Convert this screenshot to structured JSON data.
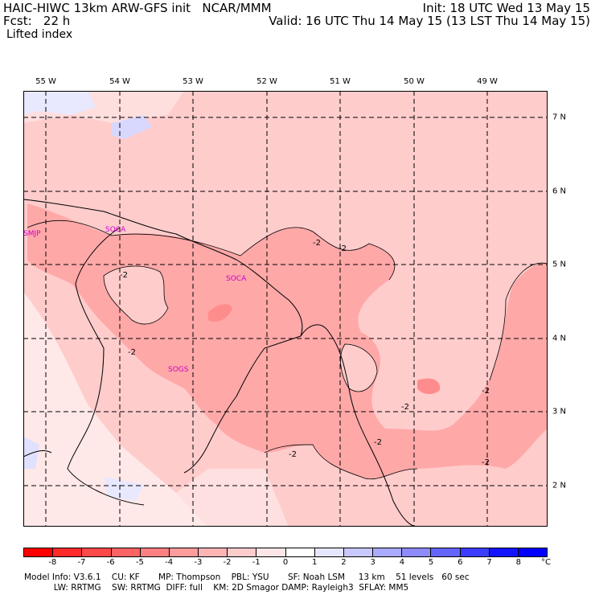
{
  "header": {
    "title_left": "HAIC-HIWC 13km ARW-GFS init   NCAR/MMM",
    "fcst": "Fcst:   22 h",
    "field": "Lifted index",
    "init": "Init: 18 UTC Wed 13 May 15",
    "valid": "Valid: 16 UTC Thu 14 May 15 (13 LST Thu 14 May 15)"
  },
  "map": {
    "lon_labels": [
      "55 W",
      "54 W",
      "53 W",
      "52 W",
      "51 W",
      "50 W",
      "49 W"
    ],
    "lat_labels": [
      "7 N",
      "6 N",
      "5 N",
      "4 N",
      "3 N",
      "2 N"
    ],
    "stations": [
      "SMJP",
      "SOCA",
      "SOCA",
      "SOGS"
    ],
    "contour_labels": [
      "-2",
      "-2",
      "-2",
      "-2",
      "-2",
      "-2",
      "-2",
      "-2",
      "-2"
    ]
  },
  "colorbar": {
    "ticks": [
      "-8",
      "-7",
      "-6",
      "-5",
      "-4",
      "-3",
      "-2",
      "-1",
      "0",
      "1",
      "2",
      "3",
      "4",
      "5",
      "6",
      "7",
      "8"
    ],
    "unit": "°C",
    "colors": [
      "#ff0000",
      "#ff2a2a",
      "#ff4848",
      "#ff6464",
      "#ff8080",
      "#ff9c9c",
      "#ffb4b4",
      "#ffcccc",
      "#ffe6e6",
      "#ffffff",
      "#e6e6ff",
      "#c8c8ff",
      "#aaaaff",
      "#8c8cff",
      "#6464ff",
      "#3c3cff",
      "#1414ff",
      "#0000ff"
    ]
  },
  "footer": {
    "line1": "Model Info: V3.6.1    CU: KF       MP: Thompson    PBL: YSU       SF: Noah LSM     13 km    51 levels   60 sec",
    "line2": "           LW: RRTMG    SW: RRTMG  DIFF: full    KM: 2D Smagor DAMP: Rayleigh3  SFLAY: MM5"
  }
}
